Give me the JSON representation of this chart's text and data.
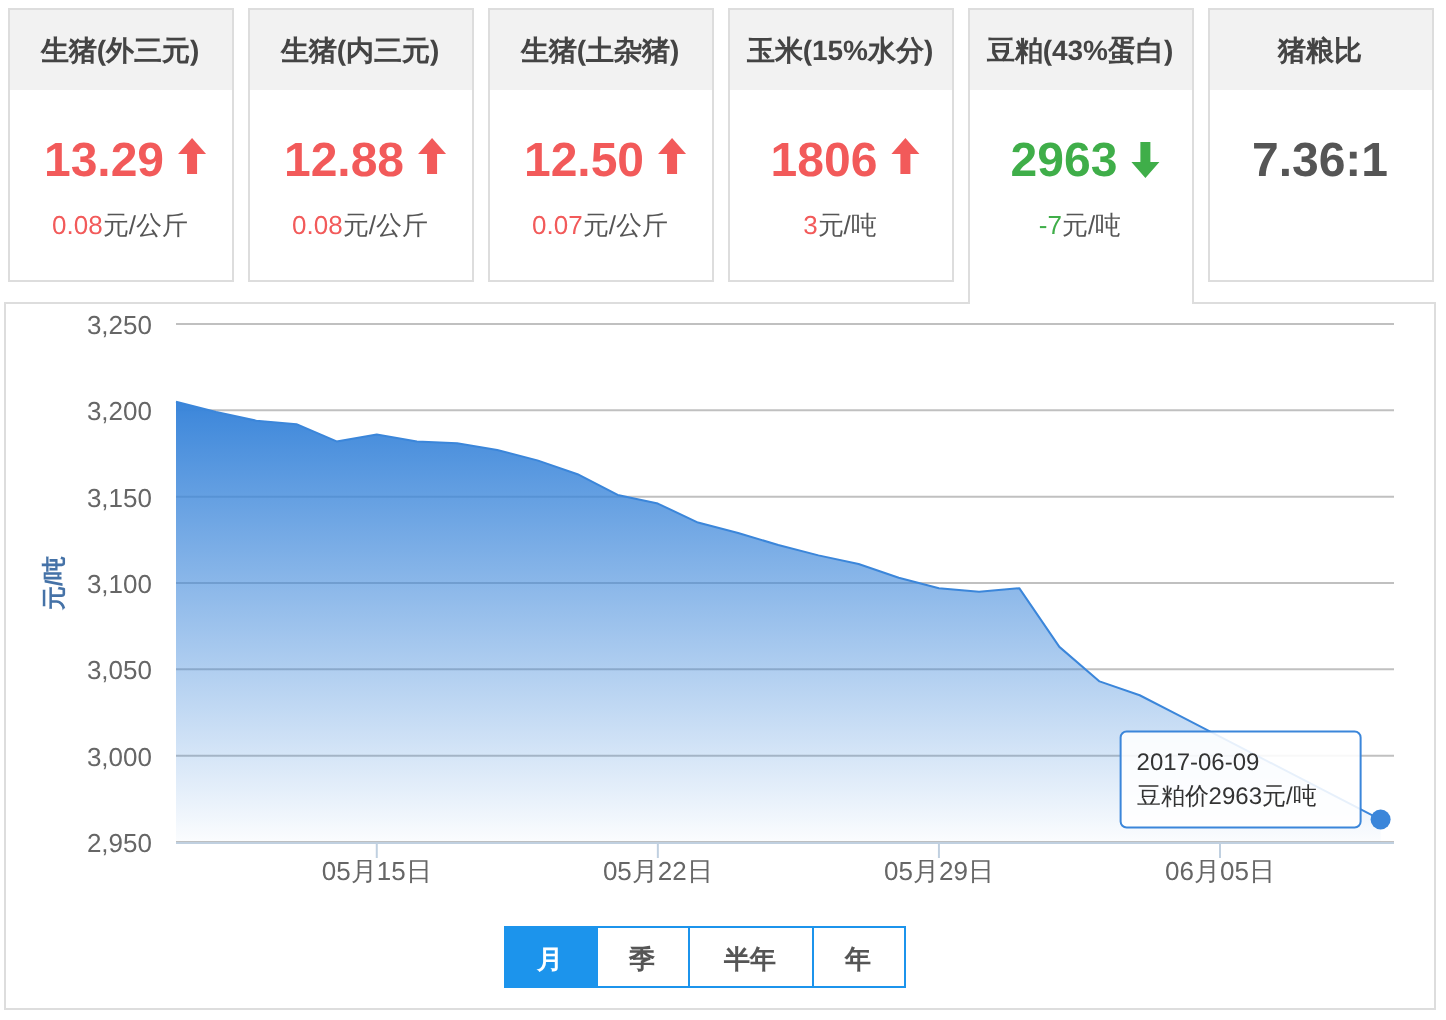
{
  "chart_data": [
    {
      "type": "other",
      "title": "生猪(外三元)",
      "annotations": [
        "13.29",
        "0.08元/公斤"
      ]
    },
    {
      "type": "other",
      "title": "生猪(内三元)",
      "annotations": [
        "12.88",
        "0.08元/公斤"
      ]
    },
    {
      "type": "other",
      "title": "生猪(土杂猪)",
      "annotations": [
        "12.50",
        "0.07元/公斤"
      ]
    },
    {
      "type": "other",
      "title": "玉米(15%水分)",
      "annotations": [
        "1806",
        "3元/吨"
      ]
    },
    {
      "type": "other",
      "title": "豆粕(43%蛋白)",
      "annotations": [
        "2963",
        "-7元/吨"
      ]
    },
    {
      "type": "other",
      "title": "猪粮比",
      "annotations": [
        "7.36:1"
      ]
    },
    {
      "type": "area",
      "ylabel": "元/吨",
      "grid": "y",
      "x": [
        "2017-05-10",
        "2017-05-11",
        "2017-05-12",
        "2017-05-13",
        "2017-05-14",
        "2017-05-15",
        "2017-05-16",
        "2017-05-17",
        "2017-05-18",
        "2017-05-19",
        "2017-05-20",
        "2017-05-21",
        "2017-05-22",
        "2017-05-23",
        "2017-05-24",
        "2017-05-25",
        "2017-05-26",
        "2017-05-27",
        "2017-05-28",
        "2017-05-29",
        "2017-05-30",
        "2017-05-31",
        "2017-06-01",
        "2017-06-02",
        "2017-06-03",
        "2017-06-04",
        "2017-06-05",
        "2017-06-06",
        "2017-06-07",
        "2017-06-08",
        "2017-06-09"
      ],
      "series": [
        {
          "color": "#3b86da",
          "values": [
            3205,
            3199,
            3194,
            3192,
            3182,
            3186,
            3182,
            3181,
            3177,
            3171,
            3163,
            3151,
            3146,
            3135,
            3129,
            3122,
            3116,
            3111,
            3103,
            3097,
            3095,
            3097,
            3063,
            3043,
            3035,
            3023,
            null,
            null,
            null,
            null,
            2963
          ]
        }
      ],
      "xlim": [
        "2017-05-10",
        "2017-06-09T08:00"
      ],
      "xticks": [
        {
          "value": "2017-05-15",
          "label": "05月15日"
        },
        {
          "value": "2017-05-22",
          "label": "05月22日"
        },
        {
          "value": "2017-05-29",
          "label": "05月29日"
        },
        {
          "value": "2017-06-05",
          "label": "06月05日"
        }
      ],
      "ylim": [
        2950,
        3250
      ],
      "yticks": [
        {
          "value": 2950,
          "label": "2,950"
        },
        {
          "value": 3000,
          "label": "3,000"
        },
        {
          "value": 3050,
          "label": "3,050"
        },
        {
          "value": 3100,
          "label": "3,100"
        },
        {
          "value": 3150,
          "label": "3,150"
        },
        {
          "value": 3200,
          "label": "3,200"
        },
        {
          "value": 3250,
          "label": "3,250"
        }
      ],
      "annotations": [
        {
          "text": "2017-06-09\n豆粕价2963元/吨",
          "x": "2017-06-09",
          "y": 2963
        }
      ]
    },
    {
      "type": "other",
      "annotations": [
        "月",
        "季",
        "半年",
        "年"
      ]
    }
  ]
}
